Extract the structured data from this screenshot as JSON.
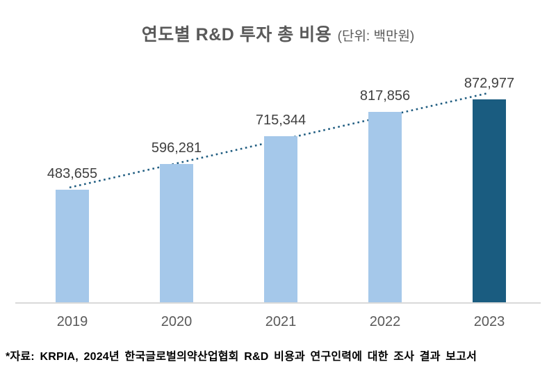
{
  "title": {
    "main": "연도별 R&D 투자 총 비용",
    "unit": "(단위: 백만원)"
  },
  "source_note": "*자료: KRPIA, 2024년 한국글로벌의약산업협회 R&D 비용과 연구인력에 대한 조사 결과 보고서",
  "colors": {
    "bar_default": "#A5C8EA",
    "bar_highlight": "#1A5C80",
    "trendline": "#1F5C80",
    "axis_line": "#D9D9D9",
    "title_text": "#595959",
    "data_label": "#404040",
    "category_label": "#595959",
    "source_text": "#000000",
    "background": "#FFFFFF"
  },
  "chart_data": {
    "type": "bar",
    "title": "연도별 R&D 투자 총 비용",
    "unit_label": "(단위: 백만원)",
    "categories": [
      "2019",
      "2020",
      "2021",
      "2022",
      "2023"
    ],
    "values": [
      483655,
      596281,
      715344,
      817856,
      872977
    ],
    "value_labels": [
      "483,655",
      "596,281",
      "715,344",
      "817,856",
      "872,977"
    ],
    "highlight_index": 4,
    "xlabel": "",
    "ylabel": "",
    "ylim": [
      0,
      1000000
    ],
    "grid": false,
    "legend": false,
    "y_axis_visible": false,
    "trendline": "linear-dotted"
  }
}
